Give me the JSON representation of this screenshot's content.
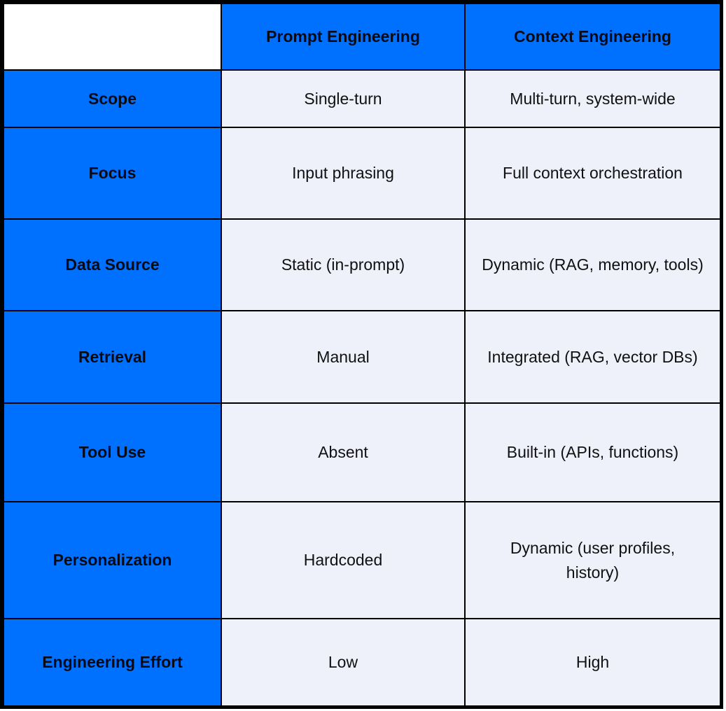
{
  "colors": {
    "header": "#0070ff",
    "cell": "#eef0fa",
    "border": "#000000"
  },
  "columns": [
    "Prompt Engineering",
    "Context Engineering"
  ],
  "rows": [
    {
      "label": "Scope",
      "prompt": "Single-turn",
      "context": "Multi-turn, system-wide"
    },
    {
      "label": "Focus",
      "prompt": "Input phrasing",
      "context": "Full context orchestration"
    },
    {
      "label": "Data Source",
      "prompt": "Static (in-prompt)",
      "context": "Dynamic (RAG, memory, tools)"
    },
    {
      "label": "Retrieval",
      "prompt": "Manual",
      "context": "Integrated (RAG, vector DBs)"
    },
    {
      "label": "Tool Use",
      "prompt": "Absent",
      "context": "Built-in (APIs, functions)"
    },
    {
      "label": "Personalization",
      "prompt": "Hardcoded",
      "context": "Dynamic (user profiles, history)"
    },
    {
      "label": "Engineering Effort",
      "prompt": "Low",
      "context": "High"
    }
  ]
}
